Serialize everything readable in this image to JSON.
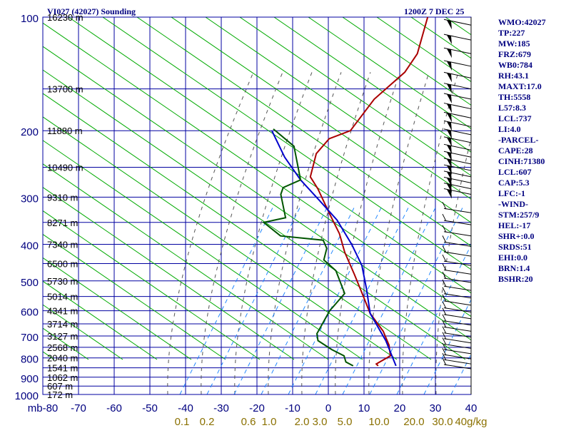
{
  "header": {
    "station": "VI027 (42027) Sounding",
    "time": "1200Z  7 DEC 25"
  },
  "stats": [
    "WMO:42027",
    "TP:227",
    "MW:185",
    "FRZ:679",
    "WB0:784",
    "RH:43.1",
    "MAXT:17.0",
    "TH:5558",
    "L57:8.3",
    "LCL:737",
    "LI:4.0",
    "-PARCEL-",
    "CAPE:28",
    "CINH:71380",
    "LCL:607",
    "CAP:5.3",
    "LFC:-1",
    "-WIND-",
    "STM:257/9",
    "HEL:-17",
    "SHR+:0.0",
    "SRDS:51",
    "EHI:0.0",
    "BRN:1.4",
    "BSHR:20"
  ],
  "chart_data": {
    "type": "line",
    "pressure_ticks": [
      100,
      200,
      300,
      400,
      500,
      600,
      700,
      800,
      900,
      1000
    ],
    "pressure_labels": [
      "100",
      "200",
      "300",
      "400",
      "500",
      "600",
      "700",
      "800",
      "900",
      "1000"
    ],
    "pressure_range": [
      100,
      1000
    ],
    "temperature_ticks": [
      -80,
      -70,
      -60,
      -50,
      -40,
      -30,
      -20,
      -10,
      0,
      10,
      20,
      30,
      40
    ],
    "temperature_labels": [
      "mb-80",
      "-70",
      "-60",
      "-50",
      "-40",
      "-30",
      "-20",
      "-10",
      "0",
      "10",
      "20",
      "30",
      "40"
    ],
    "temperature_range": [
      -80,
      40
    ],
    "mixing_ratio_labels": [
      "0.1",
      "0.2",
      "0.6",
      "1.0",
      "2.0",
      "3.0",
      "5.0",
      "10.0",
      "20.0",
      "30.0",
      "40g/kg"
    ],
    "height_labels": [
      {
        "p": 100,
        "label": "16230 m"
      },
      {
        "p": 155,
        "label": "13700 m"
      },
      {
        "p": 200,
        "label": "11880 m"
      },
      {
        "p": 250,
        "label": "10490 m"
      },
      {
        "p": 300,
        "label": "9310 m"
      },
      {
        "p": 350,
        "label": "8271 m"
      },
      {
        "p": 400,
        "label": "7340 m"
      },
      {
        "p": 450,
        "label": "6500 m"
      },
      {
        "p": 500,
        "label": "5730 m"
      },
      {
        "p": 550,
        "label": "5014 m"
      },
      {
        "p": 600,
        "label": "4341 m"
      },
      {
        "p": 650,
        "label": "3714 m"
      },
      {
        "p": 700,
        "label": "3127 m"
      },
      {
        "p": 750,
        "label": "2568 m"
      },
      {
        "p": 800,
        "label": "2040 m"
      },
      {
        "p": 850,
        "label": "1541 m"
      },
      {
        "p": 900,
        "label": "1062 m"
      },
      {
        "p": 950,
        "label": "607 m"
      },
      {
        "p": 1000,
        "label": "172 m"
      }
    ],
    "series": [
      {
        "values": [
          [
            -64,
            100
          ],
          [
            -58,
            125
          ],
          [
            -57,
            140
          ],
          [
            -59,
            165
          ],
          [
            -58,
            200
          ],
          [
            -62,
            210
          ],
          [
            -62,
            230
          ],
          [
            -58,
            265
          ],
          [
            -53,
            285
          ],
          [
            -44,
            330
          ],
          [
            -36,
            375
          ],
          [
            -30,
            420
          ],
          [
            -22,
            480
          ],
          [
            -14,
            550
          ],
          [
            -8,
            610
          ],
          [
            0,
            680
          ],
          [
            5,
            740
          ],
          [
            8,
            790
          ],
          [
            6,
            830
          ],
          [
            7,
            840
          ]
        ]
      },
      {
        "values": [
          [
            -80,
            200
          ],
          [
            -70,
            235
          ],
          [
            -60,
            270
          ],
          [
            -50,
            305
          ],
          [
            -40,
            345
          ],
          [
            -30,
            400
          ],
          [
            -22,
            455
          ],
          [
            -15,
            525
          ],
          [
            -8,
            610
          ],
          [
            3,
            720
          ],
          [
            12,
            840
          ]
        ]
      },
      {
        "values": [
          [
            -80,
            198
          ],
          [
            -70,
            220
          ],
          [
            -60,
            270
          ],
          [
            -63,
            283
          ],
          [
            -62,
            295
          ],
          [
            -55,
            340
          ],
          [
            -60,
            350
          ],
          [
            -52,
            380
          ],
          [
            -39,
            390
          ],
          [
            -36,
            410
          ],
          [
            -34,
            440
          ],
          [
            -28,
            470
          ],
          [
            -20,
            540
          ],
          [
            -20,
            575
          ],
          [
            -20,
            600
          ],
          [
            -18,
            690
          ],
          [
            -16,
            720
          ],
          [
            -10,
            760
          ],
          [
            -5,
            790
          ],
          [
            -3,
            820
          ],
          [
            0,
            840
          ]
        ]
      }
    ],
    "colors": {
      "grid": "#0000a0",
      "dry_adiabat": "#00aa00",
      "moist_adiabat": "#555555",
      "mixing_ratio": "#2288ff",
      "temperature": "#aa0000",
      "parcel": "#0000cc",
      "dewpoint": "#005500",
      "axis_text": "#000080",
      "mixing_text": "#8a7000"
    },
    "grid": true,
    "skew": "skew-T log-p"
  }
}
